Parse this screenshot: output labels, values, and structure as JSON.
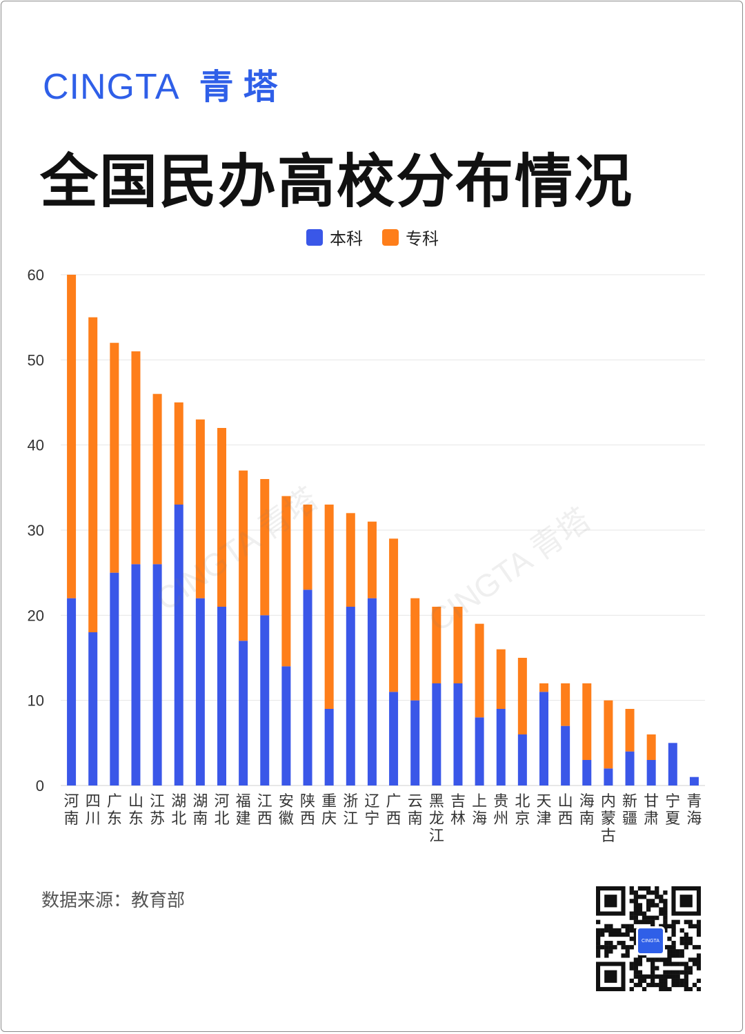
{
  "brand": {
    "en": "CINGTA",
    "zh": "青塔",
    "color": "#2f5fe8"
  },
  "title": "全国民办高校分布情况",
  "source": "数据来源：教育部",
  "qr_center_label": "CINGTA",
  "watermarks": [
    "CINGTA 青塔",
    "CINGTA 青塔"
  ],
  "chart_data": {
    "type": "bar",
    "stacked": true,
    "categories": [
      "河南",
      "四川",
      "广东",
      "山东",
      "江苏",
      "湖北",
      "湖南",
      "河北",
      "福建",
      "江西",
      "安徽",
      "陕西",
      "重庆",
      "浙江",
      "辽宁",
      "广西",
      "云南",
      "黑龙江",
      "吉林",
      "上海",
      "贵州",
      "北京",
      "天津",
      "山西",
      "海南",
      "内蒙古",
      "新疆",
      "甘肃",
      "宁夏",
      "青海"
    ],
    "series": [
      {
        "name": "本科",
        "color": "#3a57e8",
        "values": [
          22,
          18,
          25,
          26,
          26,
          33,
          22,
          21,
          17,
          20,
          14,
          23,
          9,
          21,
          22,
          11,
          10,
          12,
          12,
          8,
          9,
          6,
          11,
          7,
          3,
          2,
          4,
          3,
          5,
          1
        ]
      },
      {
        "name": "专科",
        "color": "#fe7e1a",
        "values": [
          38,
          37,
          27,
          25,
          20,
          12,
          21,
          21,
          20,
          16,
          20,
          10,
          24,
          11,
          9,
          18,
          12,
          9,
          9,
          11,
          7,
          9,
          1,
          5,
          9,
          8,
          5,
          3,
          0,
          0
        ]
      }
    ],
    "ylim": [
      0,
      60
    ],
    "yticks": [
      0,
      10,
      20,
      30,
      40,
      50,
      60
    ],
    "grid": true,
    "legend_position": "top-center",
    "xlabel": "",
    "ylabel": ""
  }
}
